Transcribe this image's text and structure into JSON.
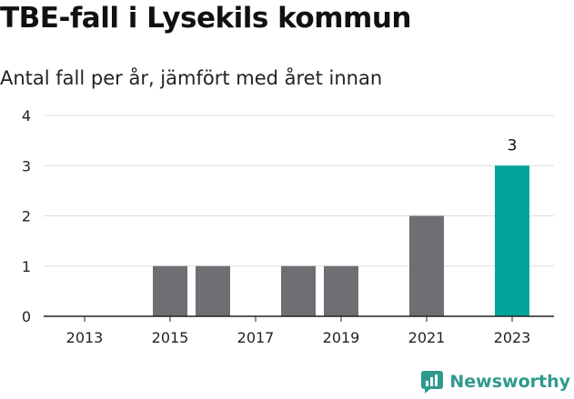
{
  "chart_data": {
    "type": "bar",
    "title": "TBE-fall i Lysekils kommun",
    "subtitle": "Antal fall per år, jämfört med året innan",
    "categories": [
      "2013",
      "2014",
      "2015",
      "2016",
      "2017",
      "2018",
      "2019",
      "2020",
      "2021",
      "2022",
      "2023"
    ],
    "values": [
      0,
      0,
      1,
      1,
      0,
      1,
      1,
      0,
      2,
      0,
      3
    ],
    "x_tick_labels": [
      "2013",
      "2015",
      "2017",
      "2019",
      "2021",
      "2023"
    ],
    "y_ticks": [
      0,
      1,
      2,
      3,
      4
    ],
    "ylim": [
      0,
      4
    ],
    "grid": true,
    "highlight": {
      "category": "2023",
      "label": "3",
      "color": "#00a398"
    },
    "bar_color": "#6f6e72"
  },
  "brand": {
    "name": "Newsworthy",
    "icon": "newsworthy-logo-icon",
    "color": "#2f9a8e"
  }
}
